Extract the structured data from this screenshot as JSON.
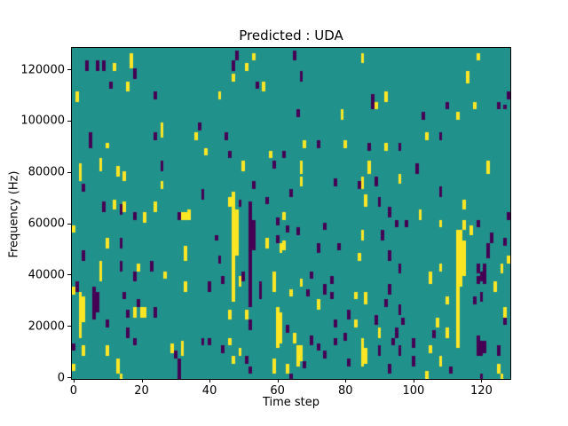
{
  "chart_data": {
    "type": "heatmap",
    "title": "Predicted : UDA",
    "xlabel": "Time step",
    "ylabel": "Frequency (Hz)",
    "x_ticks": [
      0,
      20,
      40,
      60,
      80,
      100,
      120
    ],
    "y_ticks": [
      0,
      20000,
      40000,
      60000,
      80000,
      100000,
      120000
    ],
    "grid": {
      "cols": 129,
      "rows": 129,
      "x_range": [
        0,
        129
      ],
      "freq_range_hz": [
        0,
        129000
      ],
      "hz_per_row": 1000
    },
    "legend_position": "none",
    "colors": {
      "background": "#21918c",
      "high": "#fde725",
      "low": "#440154",
      "axes": "#000000",
      "figure_bg": "#ffffff"
    },
    "runs_format": "[time_step, freq_bin_start(bottom-up), run_length_bins, color y=yellow p=purple]",
    "runs": [
      [
        4,
        120,
        4,
        "p"
      ],
      [
        7,
        120,
        4,
        "p"
      ],
      [
        9,
        120,
        4,
        "p"
      ],
      [
        12,
        120,
        3,
        "y"
      ],
      [
        17,
        121,
        6,
        "y"
      ],
      [
        18,
        117,
        4,
        "p"
      ],
      [
        11,
        113,
        3,
        "p"
      ],
      [
        16,
        112,
        4,
        "y"
      ],
      [
        1,
        108,
        4,
        "y"
      ],
      [
        24,
        109,
        3,
        "p"
      ],
      [
        37,
        97,
        3,
        "p"
      ],
      [
        26,
        94,
        6,
        "y"
      ],
      [
        24,
        93,
        3,
        "p"
      ],
      [
        36,
        93,
        3,
        "y"
      ],
      [
        5,
        90,
        6,
        "p"
      ],
      [
        10,
        90,
        2,
        "y"
      ],
      [
        39,
        87,
        3,
        "y"
      ],
      [
        48,
        124,
        4,
        "p"
      ],
      [
        53,
        124,
        3,
        "y"
      ],
      [
        65,
        124,
        4,
        "p"
      ],
      [
        47,
        120,
        4,
        "p"
      ],
      [
        51,
        120,
        3,
        "y"
      ],
      [
        47,
        116,
        3,
        "y"
      ],
      [
        67,
        116,
        4,
        "p"
      ],
      [
        54,
        113,
        3,
        "p"
      ],
      [
        56,
        112,
        4,
        "y"
      ],
      [
        43,
        109,
        3,
        "y"
      ],
      [
        66,
        102,
        3,
        "p"
      ],
      [
        79,
        101,
        4,
        "y"
      ],
      [
        45,
        93,
        3,
        "p"
      ],
      [
        68,
        90,
        3,
        "y"
      ],
      [
        72,
        90,
        3,
        "p"
      ],
      [
        80,
        90,
        3,
        "y"
      ],
      [
        46,
        86,
        3,
        "p"
      ],
      [
        58,
        86,
        3,
        "y"
      ],
      [
        62,
        86,
        3,
        "p"
      ],
      [
        85,
        123,
        4,
        "y"
      ],
      [
        116,
        115,
        5,
        "y"
      ],
      [
        88,
        105,
        6,
        "p"
      ],
      [
        92,
        108,
        4,
        "y"
      ],
      [
        89,
        105,
        3,
        "y"
      ],
      [
        110,
        105,
        3,
        "p"
      ],
      [
        118,
        105,
        3,
        "y"
      ],
      [
        125,
        105,
        3,
        "p"
      ],
      [
        127,
        105,
        2,
        "p"
      ],
      [
        113,
        101,
        3,
        "y"
      ],
      [
        103,
        101,
        3,
        "p"
      ],
      [
        104,
        93,
        3,
        "y"
      ],
      [
        108,
        93,
        3,
        "p"
      ],
      [
        87,
        89,
        3,
        "p"
      ],
      [
        92,
        89,
        3,
        "y"
      ],
      [
        96,
        89,
        3,
        "p"
      ],
      [
        119,
        124,
        3,
        "y"
      ],
      [
        8,
        81,
        5,
        "y"
      ],
      [
        2,
        77,
        7,
        "y"
      ],
      [
        26,
        81,
        4,
        "p"
      ],
      [
        13,
        79,
        4,
        "y"
      ],
      [
        15,
        77,
        4,
        "y"
      ],
      [
        3,
        73,
        3,
        "p"
      ],
      [
        26,
        74,
        3,
        "y"
      ],
      [
        38,
        70,
        4,
        "p"
      ],
      [
        9,
        65,
        4,
        "p"
      ],
      [
        12,
        66,
        4,
        "y"
      ],
      [
        14,
        64,
        4,
        "p"
      ],
      [
        15,
        65,
        4,
        "y"
      ],
      [
        18,
        62,
        3,
        "p"
      ],
      [
        21,
        61,
        4,
        "y"
      ],
      [
        24,
        65,
        4,
        "y"
      ],
      [
        31,
        62,
        3,
        "p"
      ],
      [
        32,
        62,
        3,
        "y"
      ],
      [
        33,
        62,
        3,
        "y"
      ],
      [
        34,
        62,
        4,
        "y"
      ],
      [
        42,
        54,
        2,
        "p"
      ],
      [
        10,
        51,
        4,
        "y"
      ],
      [
        14,
        51,
        4,
        "p"
      ],
      [
        3,
        46,
        4,
        "p"
      ],
      [
        8,
        42,
        4,
        "y"
      ],
      [
        14,
        42,
        4,
        "p"
      ],
      [
        19,
        42,
        3,
        "y"
      ],
      [
        23,
        42,
        4,
        "p"
      ],
      [
        33,
        46,
        6,
        "y"
      ],
      [
        43,
        45,
        3,
        "p"
      ],
      [
        50,
        81,
        4,
        "y"
      ],
      [
        59,
        82,
        3,
        "p"
      ],
      [
        67,
        80,
        5,
        "y"
      ],
      [
        53,
        74,
        3,
        "p"
      ],
      [
        67,
        75,
        4,
        "y"
      ],
      [
        77,
        75,
        3,
        "p"
      ],
      [
        84,
        74,
        3,
        "p"
      ],
      [
        64,
        71,
        3,
        "p"
      ],
      [
        46,
        67,
        4,
        "y"
      ],
      [
        49,
        67,
        3,
        "p"
      ],
      [
        47,
        30,
        43,
        "y"
      ],
      [
        48,
        48,
        18,
        "y"
      ],
      [
        52,
        28,
        41,
        "p"
      ],
      [
        53,
        50,
        12,
        "p"
      ],
      [
        57,
        68,
        3,
        "p"
      ],
      [
        57,
        51,
        4,
        "y"
      ],
      [
        60,
        60,
        3,
        "p"
      ],
      [
        63,
        57,
        3,
        "p"
      ],
      [
        62,
        62,
        3,
        "y"
      ],
      [
        60,
        53,
        3,
        "p"
      ],
      [
        61,
        49,
        4,
        "y"
      ],
      [
        62,
        50,
        4,
        "y"
      ],
      [
        66,
        56,
        3,
        "p"
      ],
      [
        74,
        58,
        3,
        "p"
      ],
      [
        72,
        49,
        4,
        "p"
      ],
      [
        78,
        50,
        3,
        "p"
      ],
      [
        84,
        46,
        3,
        "y"
      ],
      [
        76,
        37,
        3,
        "p"
      ],
      [
        67,
        36,
        3,
        "y"
      ],
      [
        70,
        39,
        3,
        "p"
      ],
      [
        87,
        80,
        5,
        "y"
      ],
      [
        96,
        76,
        4,
        "y"
      ],
      [
        101,
        80,
        4,
        "p"
      ],
      [
        122,
        80,
        5,
        "y"
      ],
      [
        89,
        75,
        4,
        "p"
      ],
      [
        85,
        74,
        5,
        "y"
      ],
      [
        108,
        71,
        4,
        "p"
      ],
      [
        86,
        67,
        5,
        "y"
      ],
      [
        90,
        67,
        4,
        "p"
      ],
      [
        93,
        63,
        4,
        "p"
      ],
      [
        102,
        62,
        4,
        "y"
      ],
      [
        115,
        66,
        4,
        "y"
      ],
      [
        95,
        59,
        3,
        "p"
      ],
      [
        98,
        59,
        3,
        "p"
      ],
      [
        108,
        59,
        3,
        "y"
      ],
      [
        115,
        58,
        4,
        "y"
      ],
      [
        119,
        59,
        3,
        "p"
      ],
      [
        91,
        54,
        4,
        "p"
      ],
      [
        85,
        54,
        4,
        "y"
      ],
      [
        123,
        53,
        4,
        "p"
      ],
      [
        117,
        56,
        4,
        "y"
      ],
      [
        122,
        47,
        6,
        "p"
      ],
      [
        114,
        36,
        22,
        "y"
      ],
      [
        115,
        40,
        14,
        "y"
      ],
      [
        93,
        46,
        4,
        "p"
      ],
      [
        96,
        41,
        4,
        "p"
      ],
      [
        108,
        42,
        3,
        "y"
      ],
      [
        119,
        41,
        4,
        "p"
      ],
      [
        121,
        41,
        4,
        "p"
      ],
      [
        119,
        37,
        3,
        "p"
      ],
      [
        121,
        37,
        3,
        "p"
      ],
      [
        127,
        52,
        3,
        "p"
      ],
      [
        126,
        41,
        4,
        "y"
      ],
      [
        8,
        38,
        4,
        "y"
      ],
      [
        18,
        38,
        4,
        "p"
      ],
      [
        27,
        39,
        3,
        "y"
      ],
      [
        1,
        34,
        4,
        "p"
      ],
      [
        33,
        34,
        4,
        "y"
      ],
      [
        40,
        34,
        4,
        "p"
      ],
      [
        2,
        16,
        18,
        "y"
      ],
      [
        3,
        22,
        10,
        "y"
      ],
      [
        6,
        23,
        13,
        "p"
      ],
      [
        7,
        26,
        8,
        "p"
      ],
      [
        15,
        31,
        3,
        "p"
      ],
      [
        19,
        28,
        3,
        "p"
      ],
      [
        18,
        24,
        4,
        "y"
      ],
      [
        16,
        24,
        3,
        "p"
      ],
      [
        20,
        24,
        4,
        "y"
      ],
      [
        21,
        24,
        4,
        "y"
      ],
      [
        24,
        24,
        4,
        "p"
      ],
      [
        10,
        20,
        3,
        "p"
      ],
      [
        16,
        16,
        4,
        "p"
      ],
      [
        18,
        13,
        3,
        "p"
      ],
      [
        3,
        9,
        4,
        "y"
      ],
      [
        10,
        9,
        4,
        "y"
      ],
      [
        13,
        2,
        6,
        "y"
      ],
      [
        29,
        10,
        4,
        "y"
      ],
      [
        32,
        9,
        6,
        "y"
      ],
      [
        30,
        8,
        3,
        "p"
      ],
      [
        31,
        2,
        6,
        "p"
      ],
      [
        38,
        13,
        3,
        "p"
      ],
      [
        40,
        13,
        3,
        "p"
      ],
      [
        0,
        3,
        3,
        "y"
      ],
      [
        0,
        11,
        3,
        "p"
      ],
      [
        0,
        33,
        3,
        "y"
      ],
      [
        0,
        57,
        3,
        "y"
      ],
      [
        14,
        0,
        2,
        "y"
      ],
      [
        31,
        0,
        2,
        "p"
      ],
      [
        49,
        36,
        4,
        "y"
      ],
      [
        44,
        37,
        3,
        "p"
      ],
      [
        50,
        38,
        4,
        "p"
      ],
      [
        59,
        34,
        8,
        "y"
      ],
      [
        55,
        31,
        7,
        "p"
      ],
      [
        69,
        32,
        3,
        "p"
      ],
      [
        64,
        32,
        3,
        "y"
      ],
      [
        72,
        27,
        4,
        "y"
      ],
      [
        74,
        33,
        4,
        "p"
      ],
      [
        76,
        31,
        3,
        "p"
      ],
      [
        51,
        23,
        4,
        "y"
      ],
      [
        52,
        19,
        4,
        "p"
      ],
      [
        60,
        12,
        16,
        "y"
      ],
      [
        61,
        14,
        12,
        "y"
      ],
      [
        63,
        18,
        3,
        "p"
      ],
      [
        65,
        14,
        4,
        "y"
      ],
      [
        70,
        13,
        4,
        "p"
      ],
      [
        66,
        5,
        8,
        "y"
      ],
      [
        67,
        7,
        6,
        "y"
      ],
      [
        72,
        11,
        3,
        "p"
      ],
      [
        77,
        13,
        3,
        "p"
      ],
      [
        74,
        8,
        3,
        "p"
      ],
      [
        46,
        23,
        4,
        "y"
      ],
      [
        46,
        13,
        3,
        "y"
      ],
      [
        44,
        10,
        3,
        "p"
      ],
      [
        47,
        6,
        3,
        "y"
      ],
      [
        49,
        9,
        3,
        "y"
      ],
      [
        51,
        6,
        3,
        "p"
      ],
      [
        52,
        2,
        3,
        "p"
      ],
      [
        59,
        2,
        6,
        "y"
      ],
      [
        63,
        2,
        4,
        "y"
      ],
      [
        68,
        4,
        3,
        "p"
      ],
      [
        81,
        5,
        3,
        "p"
      ],
      [
        83,
        31,
        3,
        "y"
      ],
      [
        81,
        23,
        4,
        "p"
      ],
      [
        77,
        20,
        3,
        "p"
      ],
      [
        83,
        20,
        3,
        "y"
      ],
      [
        80,
        15,
        3,
        "p"
      ],
      [
        64,
        0,
        2,
        "p"
      ],
      [
        105,
        37,
        5,
        "y"
      ],
      [
        113,
        12,
        46,
        "y"
      ],
      [
        120,
        38,
        4,
        "p"
      ],
      [
        121,
        38,
        4,
        "p"
      ],
      [
        124,
        34,
        4,
        "y"
      ],
      [
        93,
        33,
        4,
        "p"
      ],
      [
        86,
        29,
        5,
        "y"
      ],
      [
        92,
        28,
        3,
        "p"
      ],
      [
        118,
        29,
        3,
        "p"
      ],
      [
        120,
        30,
        4,
        "p"
      ],
      [
        110,
        29,
        3,
        "y"
      ],
      [
        96,
        25,
        4,
        "p"
      ],
      [
        89,
        21,
        4,
        "p"
      ],
      [
        90,
        16,
        4,
        "y"
      ],
      [
        97,
        21,
        3,
        "p"
      ],
      [
        107,
        20,
        4,
        "y"
      ],
      [
        106,
        16,
        3,
        "p"
      ],
      [
        110,
        16,
        4,
        "y"
      ],
      [
        95,
        16,
        4,
        "p"
      ],
      [
        94,
        13,
        3,
        "p"
      ],
      [
        90,
        9,
        4,
        "p"
      ],
      [
        85,
        12,
        4,
        "y"
      ],
      [
        85,
        5,
        7,
        "y"
      ],
      [
        86,
        6,
        6,
        "y"
      ],
      [
        93,
        2,
        4,
        "p"
      ],
      [
        96,
        9,
        4,
        "p"
      ],
      [
        100,
        12,
        4,
        "p"
      ],
      [
        100,
        5,
        4,
        "p"
      ],
      [
        105,
        10,
        3,
        "y"
      ],
      [
        108,
        5,
        4,
        "y"
      ],
      [
        111,
        2,
        3,
        "p"
      ],
      [
        119,
        9,
        8,
        "p"
      ],
      [
        120,
        9,
        6,
        "p"
      ],
      [
        121,
        10,
        5,
        "p"
      ],
      [
        125,
        9,
        4,
        "p"
      ],
      [
        125,
        2,
        4,
        "y"
      ],
      [
        120,
        0,
        2,
        "p"
      ],
      [
        104,
        0,
        3,
        "y"
      ],
      [
        127,
        24,
        4,
        "y"
      ],
      [
        127,
        21,
        3,
        "p"
      ],
      [
        126,
        0,
        2,
        "y"
      ],
      [
        128,
        62,
        3,
        "p"
      ],
      [
        128,
        45,
        3,
        "y"
      ],
      [
        128,
        109,
        3,
        "p"
      ]
    ]
  }
}
